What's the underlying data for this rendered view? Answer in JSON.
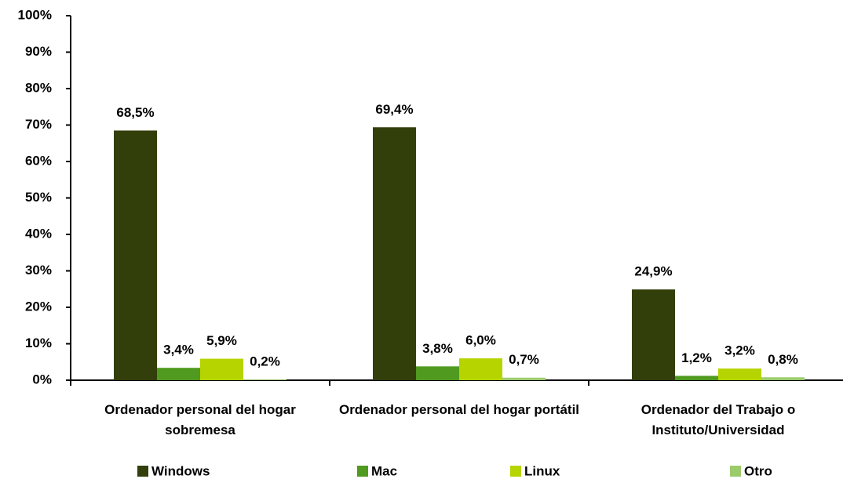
{
  "chart_data": {
    "type": "bar",
    "categories": [
      "Ordenador personal del hogar sobremesa",
      "Ordenador personal del hogar portátil",
      "Ordenador del Trabajo o Instituto/Universidad"
    ],
    "series": [
      {
        "name": "Windows",
        "color": "#333f0b",
        "values": [
          68.5,
          69.4,
          24.9
        ],
        "value_labels": [
          "68,5%",
          "69,4%",
          "24,9%"
        ]
      },
      {
        "name": "Mac",
        "color": "#4f9a1f",
        "values": [
          3.4,
          3.8,
          1.2
        ],
        "value_labels": [
          "3,4%",
          "3,8%",
          "1,2%"
        ]
      },
      {
        "name": "Linux",
        "color": "#b6d400",
        "values": [
          5.9,
          6.0,
          3.2
        ],
        "value_labels": [
          "5,9%",
          "6,0%",
          "3,2%"
        ]
      },
      {
        "name": "Otro",
        "color": "#9bcb6b",
        "values": [
          0.2,
          0.7,
          0.8
        ],
        "value_labels": [
          "0,2%",
          "0,7%",
          "0,8%"
        ]
      }
    ],
    "ylim": [
      0,
      100
    ],
    "yticks": [
      {
        "value": 0,
        "label": "0%"
      },
      {
        "value": 10,
        "label": "10%"
      },
      {
        "value": 20,
        "label": "20%"
      },
      {
        "value": 30,
        "label": "30%"
      },
      {
        "value": 40,
        "label": "40%"
      },
      {
        "value": 50,
        "label": "50%"
      },
      {
        "value": 60,
        "label": "60%"
      },
      {
        "value": 70,
        "label": "70%"
      },
      {
        "value": 80,
        "label": "80%"
      },
      {
        "value": 90,
        "label": "90%"
      },
      {
        "value": 100,
        "label": "100%"
      }
    ],
    "grid": false,
    "legend": "bottom"
  }
}
